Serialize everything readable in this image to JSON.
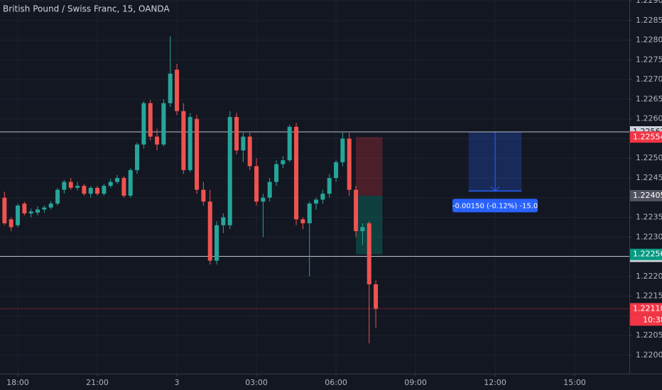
{
  "chart_data": {
    "type": "candlestick",
    "title": "British Pound / Swiss Franc, 15, OANDA",
    "x": [
      17.5,
      17.75,
      18,
      18.25,
      18.5,
      18.75,
      19,
      19.25,
      19.5,
      19.75,
      20,
      20.25,
      20.5,
      20.75,
      21,
      21.25,
      21.5,
      21.75,
      22,
      22.25,
      22.5,
      22.75,
      23,
      23.25,
      23.5,
      23.75,
      24,
      24.25,
      24.5,
      24.75,
      25,
      25.25,
      25.5,
      25.75,
      26,
      26.25,
      26.5,
      26.75,
      27,
      27.25,
      27.5,
      27.75,
      28,
      28.25,
      28.5,
      28.75,
      29,
      29.25,
      29.5,
      29.75,
      30,
      30.25,
      30.5,
      30.75,
      31,
      31.25,
      31.5
    ],
    "open": [
      1.224,
      1.22345,
      1.2233,
      1.22385,
      1.2236,
      1.22362,
      1.2237,
      1.22375,
      1.22385,
      1.2242,
      1.2244,
      1.22425,
      1.2243,
      1.2241,
      1.22425,
      1.2241,
      1.2243,
      1.2244,
      1.2245,
      1.22405,
      1.2247,
      1.22535,
      1.2264,
      1.22555,
      1.22535,
      1.2264,
      1.22725,
      1.2262,
      1.2247,
      1.226,
      1.2242,
      1.2239,
      1.2224,
      1.2233,
      1.2233,
      1.22605,
      1.2252,
      1.22555,
      1.2248,
      1.2239,
      1.224,
      1.2244,
      1.22485,
      1.22495,
      1.2258,
      1.22345,
      1.22335,
      1.22385,
      1.22395,
      1.2241,
      1.2245,
      1.2249,
      1.2255,
      1.2242,
      1.22315,
      1.22335,
      1.2218
    ],
    "high": [
      1.22415,
      1.2235,
      1.22385,
      1.2239,
      1.22372,
      1.22378,
      1.2238,
      1.22392,
      1.22425,
      1.22445,
      1.2245,
      1.2244,
      1.22435,
      1.2243,
      1.2243,
      1.22435,
      1.22448,
      1.22458,
      1.22455,
      1.22475,
      1.2254,
      1.22645,
      1.22648,
      1.22575,
      1.2265,
      1.2281,
      1.2274,
      1.2264,
      1.22615,
      1.2261,
      1.2244,
      1.2242,
      1.2234,
      1.2236,
      1.2262,
      1.22615,
      1.22565,
      1.22565,
      1.225,
      1.2241,
      1.2245,
      1.22495,
      1.22505,
      1.22585,
      1.2259,
      1.2235,
      1.2239,
      1.224,
      1.2242,
      1.2246,
      1.22495,
      1.22565,
      1.22565,
      1.2243,
      1.22335,
      1.2234,
      1.2219
    ],
    "low": [
      1.2233,
      1.22315,
      1.22325,
      1.22355,
      1.2235,
      1.22355,
      1.22362,
      1.2237,
      1.2238,
      1.2241,
      1.2242,
      1.22418,
      1.22405,
      1.224,
      1.22405,
      1.22405,
      1.22425,
      1.22435,
      1.224,
      1.224,
      1.2246,
      1.22525,
      1.22545,
      1.2252,
      1.2253,
      1.2263,
      1.2261,
      1.2246,
      1.22465,
      1.2241,
      1.2238,
      1.2223,
      1.2223,
      1.2231,
      1.2232,
      1.2251,
      1.2249,
      1.2247,
      1.2238,
      1.223,
      1.2239,
      1.2243,
      1.22475,
      1.2249,
      1.2233,
      1.2232,
      1.222,
      1.2237,
      1.22385,
      1.224,
      1.2244,
      1.2248,
      1.22405,
      1.223,
      1.2228,
      1.2203,
      1.2207
    ],
    "close": [
      1.22335,
      1.22325,
      1.2238,
      1.2236,
      1.22365,
      1.2237,
      1.22375,
      1.22385,
      1.2242,
      1.2244,
      1.22425,
      1.2243,
      1.2241,
      1.22425,
      1.2241,
      1.2243,
      1.2244,
      1.2245,
      1.22405,
      1.2247,
      1.22535,
      1.2264,
      1.22555,
      1.22535,
      1.2264,
      1.22715,
      1.2262,
      1.2247,
      1.22605,
      1.2242,
      1.2239,
      1.2224,
      1.2233,
      1.2235,
      1.22605,
      1.2252,
      1.22555,
      1.2248,
      1.2239,
      1.224,
      1.2244,
      1.22485,
      1.22495,
      1.2258,
      1.22345,
      1.22335,
      1.22385,
      1.22395,
      1.2241,
      1.2245,
      1.2249,
      1.2255,
      1.2242,
      1.22315,
      1.22325,
      1.2218,
      1.22118
    ],
    "up_color": "#26a69a",
    "down_color": "#ef5350",
    "grid": true,
    "xlim": [
      17.33,
      41.06
    ],
    "ylim": [
      1.21953,
      1.22902
    ],
    "xticks": [
      {
        "value": 18,
        "label": "18:00"
      },
      {
        "value": 21,
        "label": "21:00"
      },
      {
        "value": 24,
        "label": "3"
      },
      {
        "value": 27,
        "label": "03:00"
      },
      {
        "value": 30,
        "label": "06:00"
      },
      {
        "value": 33,
        "label": "09:00"
      },
      {
        "value": 36,
        "label": "12:00"
      },
      {
        "value": 39,
        "label": "15:00"
      }
    ],
    "yticks": [
      {
        "value": 1.22,
        "label": "1.22000"
      },
      {
        "value": 1.2205,
        "label": "1.22050"
      },
      {
        "value": 1.221,
        "label": "1.22100"
      },
      {
        "value": 1.2215,
        "label": "1.22150"
      },
      {
        "value": 1.222,
        "label": "1.22200"
      },
      {
        "value": 1.2225,
        "label": "1.22250"
      },
      {
        "value": 1.223,
        "label": "1.22300"
      },
      {
        "value": 1.2235,
        "label": "1.22350"
      },
      {
        "value": 1.224,
        "label": "1.22400"
      },
      {
        "value": 1.2245,
        "label": "1.22450"
      },
      {
        "value": 1.225,
        "label": "1.22500"
      },
      {
        "value": 1.2255,
        "label": "1.22550"
      },
      {
        "value": 1.226,
        "label": "1.22600"
      },
      {
        "value": 1.2265,
        "label": "1.22650"
      },
      {
        "value": 1.227,
        "label": "1.22700"
      },
      {
        "value": 1.2275,
        "label": "1.22750"
      },
      {
        "value": 1.228,
        "label": "1.22800"
      },
      {
        "value": 1.2285,
        "label": "1.22850"
      },
      {
        "value": 1.229,
        "label": "1.22900"
      }
    ],
    "hlines": [
      {
        "value": 1.22567,
        "color": "#d1d4dc"
      },
      {
        "value": 1.22251,
        "color": "#d1d4dc"
      },
      {
        "value": 1.22118,
        "color": "#f23645"
      }
    ],
    "countdown": "10:38",
    "position": {
      "x": [
        30.75,
        31.75
      ],
      "stop": 1.22554,
      "entry": 1.22405,
      "target": 1.22256,
      "stop_color": "#f23645",
      "entry_color": "#50535e",
      "target_color": "#089981"
    },
    "measure": {
      "x": [
        35.0,
        37.0
      ],
      "from": 1.22567,
      "to": 1.22417,
      "label": "-0.00150 (-0.12%) -15.0",
      "color": "#2962ff"
    }
  }
}
